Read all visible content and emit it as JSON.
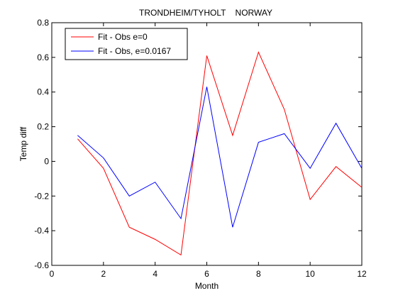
{
  "chart_data": {
    "type": "line",
    "title": "TRONDHEIM/TYHOLT    NORWAY",
    "xlabel": "Month",
    "ylabel": "Temp diff",
    "xlim": [
      0,
      12
    ],
    "ylim": [
      -0.6,
      0.8
    ],
    "xticks": [
      0,
      2,
      4,
      6,
      8,
      10,
      12
    ],
    "yticks": [
      -0.6,
      -0.4,
      -0.2,
      0,
      0.2,
      0.4,
      0.6,
      0.8
    ],
    "grid": false,
    "legend_position": "top-left",
    "x": [
      1,
      2,
      3,
      4,
      5,
      6,
      7,
      8,
      9,
      10,
      11,
      12
    ],
    "series": [
      {
        "name": "Fit - Obs e=0",
        "color": "#ff0000",
        "values": [
          0.13,
          -0.04,
          -0.38,
          -0.45,
          -0.54,
          0.61,
          0.15,
          0.63,
          0.3,
          -0.22,
          -0.03,
          -0.15
        ]
      },
      {
        "name": "Fit - Obs, e=0.0167",
        "color": "#0000ff",
        "values": [
          0.15,
          0.02,
          -0.2,
          -0.12,
          -0.33,
          0.43,
          -0.38,
          0.11,
          0.16,
          -0.04,
          0.22,
          -0.04
        ]
      }
    ]
  }
}
